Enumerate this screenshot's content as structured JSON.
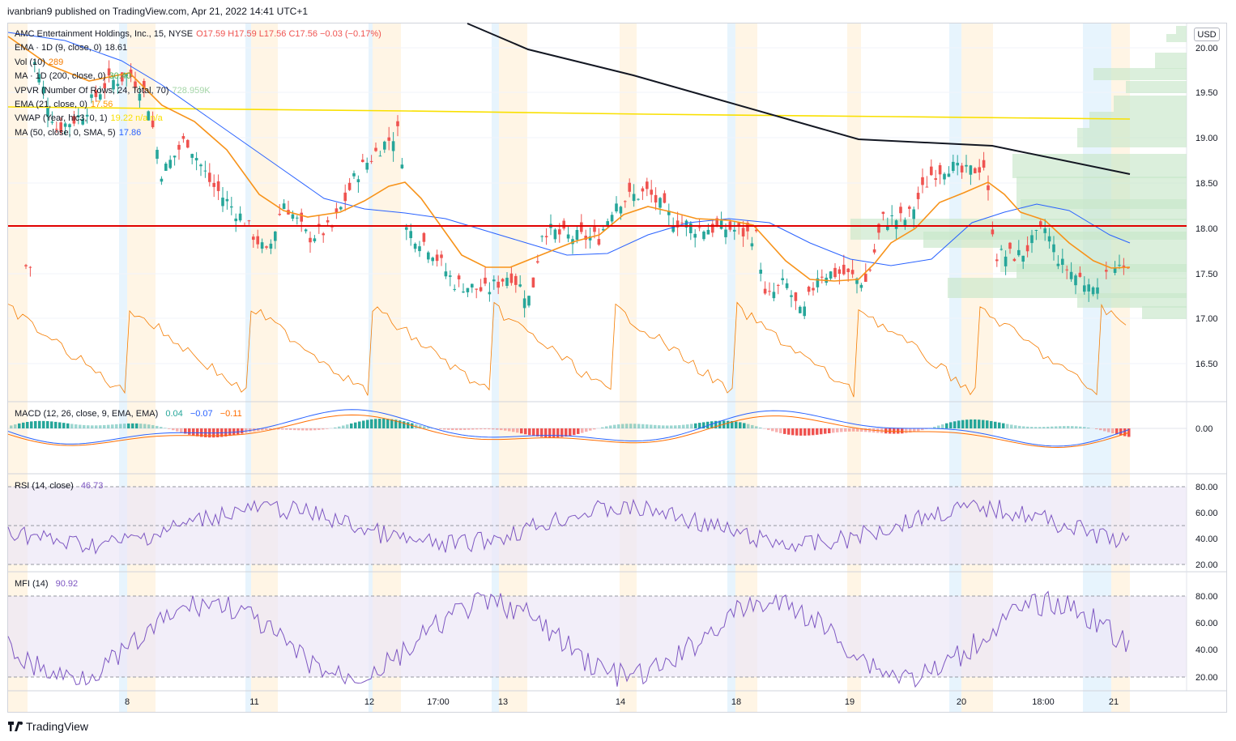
{
  "header": {
    "publish_line": "ivanbrian9 published on TradingView.com, Apr 21, 2022 14:41 UTC+1"
  },
  "currency_button": "USD",
  "legend": [
    {
      "name": "AMC Entertainment Holdings, Inc., 15, NYSE",
      "values": "O17.59  H17.59  L17.56  C17.56  −0.03 (−0.17%)",
      "color": "#ef5350"
    },
    {
      "name": "EMA · 1D (9, close, 0)",
      "values": "18.61",
      "color": "#131722"
    },
    {
      "name": "Vol (10)",
      "values": "289",
      "color": "#f57c00"
    },
    {
      "name": "MA · 1D (200, close, 0)",
      "values": "30.40",
      "color": "#4caf50"
    },
    {
      "name": "VPVR (Number Of Rows, 24, Total, 70)",
      "values": "728.959K",
      "color": "#a5d6a7"
    },
    {
      "name": "EMA (21, close, 0)",
      "values": "17.56",
      "color": "#ff9800"
    },
    {
      "name": "VWAP (Year, hlc3, 0, 1)",
      "values": "19.22  n/a  n/a",
      "color": "#f9e000"
    },
    {
      "name": "MA (50, close, 0, SMA, 5)",
      "values": "17.86",
      "color": "#2962ff"
    }
  ],
  "price_axis": [
    "20.00",
    "19.50",
    "19.00",
    "18.50",
    "18.00",
    "17.50",
    "17.00",
    "16.50"
  ],
  "macd": {
    "label": "MACD (12, 26, close, 9, EMA, EMA)",
    "v1": "0.04",
    "v2": "−0.07",
    "v3": "−0.11",
    "axis": [
      "0.00"
    ]
  },
  "rsi": {
    "label": "RSI (14, close)",
    "value": "46.73",
    "axis": [
      "80.00",
      "60.00",
      "40.00",
      "20.00"
    ]
  },
  "mfi": {
    "label": "MFI (14)",
    "value": "90.92",
    "axis": [
      "80.00",
      "60.00",
      "40.00",
      "20.00"
    ]
  },
  "time_axis": [
    "8",
    "11",
    "12",
    "17:00",
    "13",
    "14",
    "18",
    "19",
    "20",
    "18:00",
    "21"
  ],
  "colors": {
    "up": "#26a69a",
    "down": "#ef5350",
    "ema21": "#f7931a",
    "ma50": "#2962ff",
    "vwap": "#f9e000",
    "trend": "#131722",
    "support": "#e00000",
    "vpvr": "#c8e6c9",
    "vol_line": "#f57c00",
    "rsi_line": "#7e57c2",
    "bg_pane": "#ede7f6"
  },
  "footer": {
    "brand": "TradingView"
  }
}
